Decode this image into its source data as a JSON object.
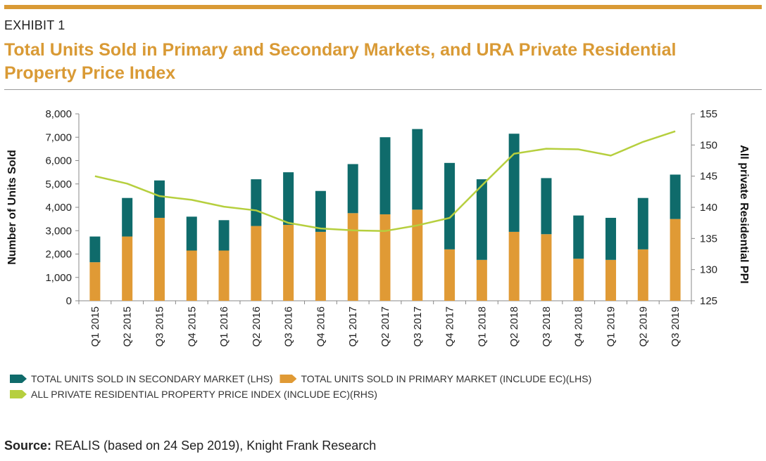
{
  "header": {
    "exhibit": "EXHIBIT 1",
    "title": "Total Units Sold in Primary and Secondary Markets, and URA Private Residential Property Price Index"
  },
  "colors": {
    "accent": "#d99a35",
    "secondary": "#0f6b6b",
    "primary": "#e09a35",
    "ppi": "#b6cf3e"
  },
  "chart_data": {
    "type": "bar",
    "stacked": true,
    "categories": [
      "Q1 2015",
      "Q2 2015",
      "Q3 2015",
      "Q4 2015",
      "Q1 2016",
      "Q2 2016",
      "Q3 2016",
      "Q4 2016",
      "Q1 2017",
      "Q2 2017",
      "Q3 2017",
      "Q4 2017",
      "Q1 2018",
      "Q2 2018",
      "Q3 2018",
      "Q4 2018",
      "Q1 2019",
      "Q2 2019",
      "Q3 2019"
    ],
    "series": [
      {
        "name": "TOTAL UNITS SOLD IN PRIMARY MARKET (INCLUDE EC)(LHS)",
        "axis": "left",
        "values": [
          1650,
          2750,
          3550,
          2150,
          2150,
          3200,
          3250,
          2950,
          3750,
          3700,
          3900,
          2200,
          1750,
          2950,
          2850,
          1800,
          1750,
          2200,
          3500
        ]
      },
      {
        "name": "TOTAL UNITS SOLD IN SECONDARY MARKET (LHS)",
        "axis": "left",
        "values": [
          1100,
          1650,
          1600,
          1450,
          1300,
          2000,
          2250,
          1750,
          2100,
          3300,
          3450,
          3700,
          3450,
          4200,
          2400,
          1850,
          1800,
          2200,
          1900
        ]
      },
      {
        "name": "ALL PRIVATE RESIDENTIAL PROPERTY PRICE INDEX (INCLUDE EC)(RHS)",
        "axis": "right",
        "type": "line",
        "values": [
          145.0,
          143.8,
          141.8,
          141.2,
          140.1,
          139.5,
          137.5,
          136.6,
          136.3,
          136.2,
          137.1,
          138.3,
          143.5,
          148.6,
          149.4,
          149.3,
          148.3,
          150.5,
          152.2
        ]
      }
    ],
    "ylabel": "Number of Units Sold",
    "y2label": "All private Residential PPI",
    "ylim": [
      0,
      8000
    ],
    "yticks": [
      "0",
      "1,000",
      "2,000",
      "3,000",
      "4,000",
      "5,000",
      "6,000",
      "7,000",
      "8,000"
    ],
    "y2lim": [
      125,
      155
    ],
    "y2ticks": [
      "125",
      "130",
      "135",
      "140",
      "145",
      "150",
      "155"
    ],
    "grid": false,
    "legend_position": "bottom"
  },
  "legend": {
    "secondary": "TOTAL UNITS SOLD IN SECONDARY MARKET (LHS)",
    "primary": "TOTAL UNITS SOLD IN PRIMARY MARKET (INCLUDE EC)(LHS)",
    "ppi": "ALL PRIVATE RESIDENTIAL PROPERTY PRICE INDEX (INCLUDE EC)(RHS)"
  },
  "source": {
    "label": "Source:",
    "text": " REALIS (based on 24 Sep 2019), Knight Frank Research"
  }
}
